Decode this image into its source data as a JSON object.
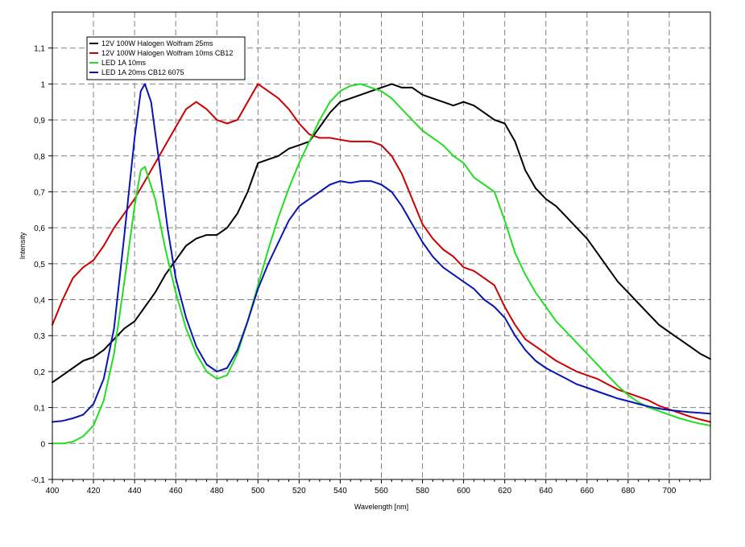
{
  "chart_data": {
    "type": "line",
    "title": "",
    "xlabel": "Wavelength [nm]",
    "ylabel": "Intensity",
    "xlim": [
      400,
      720
    ],
    "ylim": [
      -0.1,
      1.2
    ],
    "grid": true,
    "legend_position": "top-left",
    "x_ticks": [
      "400",
      "420",
      "440",
      "460",
      "480",
      "500",
      "520",
      "540",
      "560",
      "580",
      "600",
      "620",
      "640",
      "660",
      "680",
      "700"
    ],
    "y_ticks": [
      "-0,1",
      "0",
      "0,1",
      "0,2",
      "0,3",
      "0,4",
      "0,5",
      "0,6",
      "0,7",
      "0,8",
      "0,9",
      "1",
      "1,1"
    ],
    "series": [
      {
        "name": "12V 100W Halogen Wolfram 25ms",
        "color": "#000000",
        "points": [
          [
            400,
            0.17
          ],
          [
            405,
            0.19
          ],
          [
            410,
            0.21
          ],
          [
            415,
            0.23
          ],
          [
            420,
            0.24
          ],
          [
            425,
            0.26
          ],
          [
            430,
            0.29
          ],
          [
            435,
            0.32
          ],
          [
            440,
            0.34
          ],
          [
            445,
            0.38
          ],
          [
            450,
            0.42
          ],
          [
            455,
            0.47
          ],
          [
            460,
            0.51
          ],
          [
            465,
            0.55
          ],
          [
            470,
            0.57
          ],
          [
            475,
            0.58
          ],
          [
            480,
            0.58
          ],
          [
            485,
            0.6
          ],
          [
            490,
            0.64
          ],
          [
            495,
            0.7
          ],
          [
            500,
            0.78
          ],
          [
            505,
            0.79
          ],
          [
            510,
            0.8
          ],
          [
            515,
            0.82
          ],
          [
            520,
            0.83
          ],
          [
            525,
            0.84
          ],
          [
            530,
            0.88
          ],
          [
            535,
            0.92
          ],
          [
            540,
            0.95
          ],
          [
            545,
            0.96
          ],
          [
            550,
            0.97
          ],
          [
            555,
            0.98
          ],
          [
            560,
            0.99
          ],
          [
            565,
            1.0
          ],
          [
            570,
            0.99
          ],
          [
            575,
            0.99
          ],
          [
            580,
            0.97
          ],
          [
            585,
            0.96
          ],
          [
            590,
            0.95
          ],
          [
            595,
            0.94
          ],
          [
            600,
            0.95
          ],
          [
            605,
            0.94
          ],
          [
            610,
            0.92
          ],
          [
            615,
            0.9
          ],
          [
            620,
            0.89
          ],
          [
            625,
            0.84
          ],
          [
            630,
            0.76
          ],
          [
            635,
            0.71
          ],
          [
            640,
            0.68
          ],
          [
            645,
            0.66
          ],
          [
            650,
            0.63
          ],
          [
            655,
            0.6
          ],
          [
            660,
            0.57
          ],
          [
            665,
            0.53
          ],
          [
            670,
            0.49
          ],
          [
            675,
            0.45
          ],
          [
            680,
            0.42
          ],
          [
            685,
            0.39
          ],
          [
            690,
            0.36
          ],
          [
            695,
            0.33
          ],
          [
            700,
            0.31
          ],
          [
            705,
            0.29
          ],
          [
            710,
            0.27
          ],
          [
            715,
            0.25
          ],
          [
            720,
            0.235
          ]
        ]
      },
      {
        "name": "12V 100W Halogen Wolfram 10ms CB12",
        "color": "#cc0000",
        "points": [
          [
            400,
            0.33
          ],
          [
            405,
            0.4
          ],
          [
            410,
            0.46
          ],
          [
            415,
            0.49
          ],
          [
            420,
            0.51
          ],
          [
            425,
            0.55
          ],
          [
            430,
            0.6
          ],
          [
            435,
            0.64
          ],
          [
            440,
            0.68
          ],
          [
            445,
            0.73
          ],
          [
            450,
            0.78
          ],
          [
            455,
            0.83
          ],
          [
            460,
            0.88
          ],
          [
            465,
            0.93
          ],
          [
            470,
            0.95
          ],
          [
            475,
            0.93
          ],
          [
            480,
            0.9
          ],
          [
            485,
            0.89
          ],
          [
            490,
            0.9
          ],
          [
            495,
            0.95
          ],
          [
            500,
            1.0
          ],
          [
            505,
            0.98
          ],
          [
            510,
            0.96
          ],
          [
            515,
            0.93
          ],
          [
            520,
            0.89
          ],
          [
            525,
            0.86
          ],
          [
            530,
            0.85
          ],
          [
            535,
            0.85
          ],
          [
            540,
            0.845
          ],
          [
            545,
            0.84
          ],
          [
            550,
            0.84
          ],
          [
            555,
            0.84
          ],
          [
            560,
            0.83
          ],
          [
            565,
            0.8
          ],
          [
            570,
            0.75
          ],
          [
            575,
            0.68
          ],
          [
            580,
            0.61
          ],
          [
            585,
            0.57
          ],
          [
            590,
            0.54
          ],
          [
            595,
            0.52
          ],
          [
            600,
            0.49
          ],
          [
            605,
            0.48
          ],
          [
            610,
            0.46
          ],
          [
            615,
            0.44
          ],
          [
            620,
            0.38
          ],
          [
            625,
            0.33
          ],
          [
            630,
            0.29
          ],
          [
            635,
            0.27
          ],
          [
            640,
            0.25
          ],
          [
            645,
            0.23
          ],
          [
            650,
            0.215
          ],
          [
            655,
            0.2
          ],
          [
            660,
            0.19
          ],
          [
            665,
            0.18
          ],
          [
            670,
            0.165
          ],
          [
            675,
            0.15
          ],
          [
            680,
            0.14
          ],
          [
            685,
            0.13
          ],
          [
            690,
            0.12
          ],
          [
            695,
            0.105
          ],
          [
            700,
            0.095
          ],
          [
            705,
            0.085
          ],
          [
            710,
            0.075
          ],
          [
            715,
            0.067
          ],
          [
            720,
            0.06
          ]
        ]
      },
      {
        "name": "LED 1A 10ms",
        "color": "#22dd22",
        "points": [
          [
            400,
            0.0
          ],
          [
            405,
            0.0
          ],
          [
            410,
            0.005
          ],
          [
            415,
            0.02
          ],
          [
            420,
            0.05
          ],
          [
            425,
            0.12
          ],
          [
            430,
            0.25
          ],
          [
            435,
            0.45
          ],
          [
            440,
            0.66
          ],
          [
            443,
            0.76
          ],
          [
            445,
            0.77
          ],
          [
            450,
            0.68
          ],
          [
            455,
            0.54
          ],
          [
            460,
            0.42
          ],
          [
            465,
            0.32
          ],
          [
            470,
            0.25
          ],
          [
            475,
            0.2
          ],
          [
            480,
            0.18
          ],
          [
            485,
            0.19
          ],
          [
            490,
            0.25
          ],
          [
            495,
            0.34
          ],
          [
            500,
            0.44
          ],
          [
            505,
            0.54
          ],
          [
            510,
            0.63
          ],
          [
            515,
            0.71
          ],
          [
            520,
            0.78
          ],
          [
            525,
            0.84
          ],
          [
            530,
            0.9
          ],
          [
            535,
            0.95
          ],
          [
            540,
            0.98
          ],
          [
            545,
            0.995
          ],
          [
            550,
            1.0
          ],
          [
            555,
            0.99
          ],
          [
            560,
            0.98
          ],
          [
            565,
            0.96
          ],
          [
            570,
            0.93
          ],
          [
            575,
            0.9
          ],
          [
            580,
            0.87
          ],
          [
            585,
            0.85
          ],
          [
            590,
            0.83
          ],
          [
            595,
            0.8
          ],
          [
            600,
            0.78
          ],
          [
            605,
            0.74
          ],
          [
            610,
            0.72
          ],
          [
            615,
            0.7
          ],
          [
            620,
            0.62
          ],
          [
            625,
            0.53
          ],
          [
            630,
            0.47
          ],
          [
            635,
            0.42
          ],
          [
            640,
            0.38
          ],
          [
            645,
            0.34
          ],
          [
            650,
            0.31
          ],
          [
            655,
            0.28
          ],
          [
            660,
            0.25
          ],
          [
            665,
            0.22
          ],
          [
            670,
            0.19
          ],
          [
            675,
            0.16
          ],
          [
            680,
            0.135
          ],
          [
            685,
            0.115
          ],
          [
            690,
            0.1
          ],
          [
            695,
            0.09
          ],
          [
            700,
            0.08
          ],
          [
            705,
            0.07
          ],
          [
            710,
            0.062
          ],
          [
            715,
            0.055
          ],
          [
            720,
            0.05
          ]
        ]
      },
      {
        "name": "LED 1A 20ms CB12 6075",
        "color": "#0a14b4",
        "points": [
          [
            400,
            0.06
          ],
          [
            405,
            0.063
          ],
          [
            410,
            0.07
          ],
          [
            415,
            0.08
          ],
          [
            420,
            0.11
          ],
          [
            425,
            0.18
          ],
          [
            430,
            0.32
          ],
          [
            435,
            0.58
          ],
          [
            440,
            0.85
          ],
          [
            443,
            0.98
          ],
          [
            445,
            1.0
          ],
          [
            448,
            0.95
          ],
          [
            452,
            0.78
          ],
          [
            456,
            0.6
          ],
          [
            460,
            0.46
          ],
          [
            465,
            0.35
          ],
          [
            470,
            0.27
          ],
          [
            475,
            0.22
          ],
          [
            480,
            0.2
          ],
          [
            485,
            0.21
          ],
          [
            490,
            0.26
          ],
          [
            495,
            0.34
          ],
          [
            500,
            0.43
          ],
          [
            505,
            0.5
          ],
          [
            510,
            0.56
          ],
          [
            515,
            0.62
          ],
          [
            520,
            0.66
          ],
          [
            525,
            0.68
          ],
          [
            530,
            0.7
          ],
          [
            535,
            0.72
          ],
          [
            540,
            0.73
          ],
          [
            545,
            0.725
          ],
          [
            550,
            0.73
          ],
          [
            555,
            0.73
          ],
          [
            560,
            0.72
          ],
          [
            565,
            0.7
          ],
          [
            570,
            0.66
          ],
          [
            575,
            0.61
          ],
          [
            580,
            0.56
          ],
          [
            585,
            0.52
          ],
          [
            590,
            0.49
          ],
          [
            595,
            0.47
          ],
          [
            600,
            0.45
          ],
          [
            605,
            0.43
          ],
          [
            610,
            0.4
          ],
          [
            615,
            0.38
          ],
          [
            620,
            0.35
          ],
          [
            625,
            0.3
          ],
          [
            630,
            0.26
          ],
          [
            635,
            0.23
          ],
          [
            640,
            0.21
          ],
          [
            645,
            0.195
          ],
          [
            650,
            0.18
          ],
          [
            655,
            0.165
          ],
          [
            660,
            0.155
          ],
          [
            665,
            0.145
          ],
          [
            670,
            0.135
          ],
          [
            675,
            0.125
          ],
          [
            680,
            0.118
          ],
          [
            685,
            0.11
          ],
          [
            690,
            0.103
          ],
          [
            695,
            0.097
          ],
          [
            700,
            0.093
          ],
          [
            705,
            0.09
          ],
          [
            710,
            0.087
          ],
          [
            715,
            0.085
          ],
          [
            720,
            0.083
          ]
        ]
      }
    ]
  }
}
